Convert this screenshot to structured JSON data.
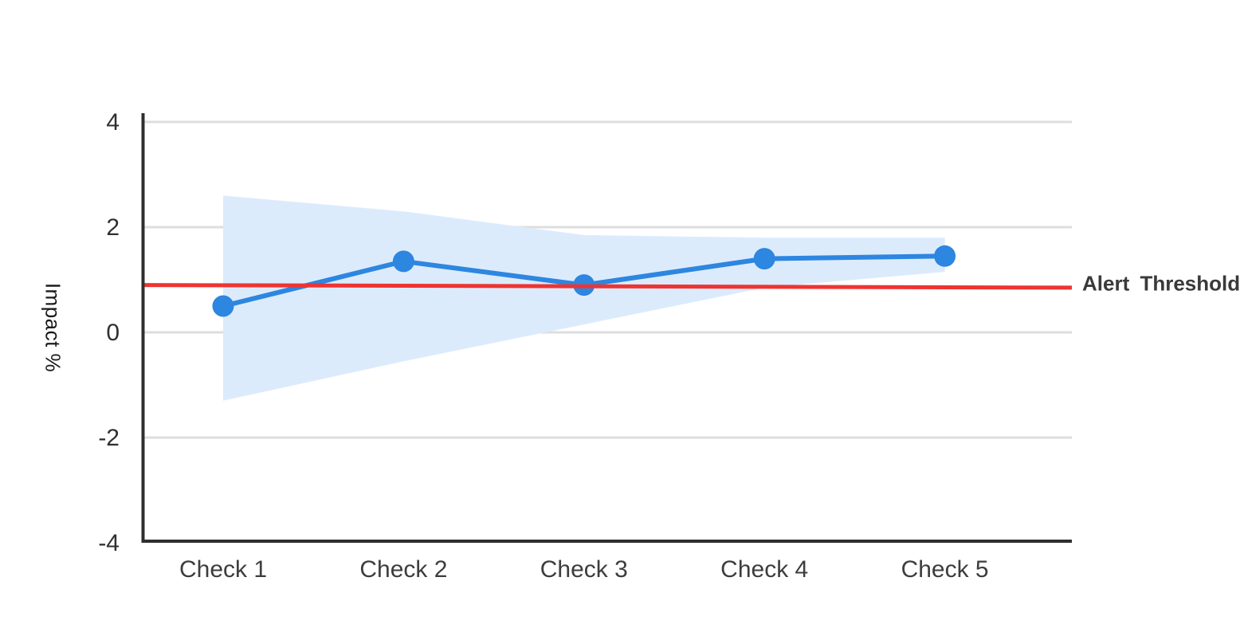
{
  "chart_data": {
    "type": "line",
    "title": "",
    "ylabel": "Impact %",
    "xlabel": "",
    "categories": [
      "Check 1",
      "Check 2",
      "Check 3",
      "Check 4",
      "Check 5"
    ],
    "series": [
      {
        "name": "Impact",
        "values": [
          0.5,
          1.35,
          0.9,
          1.4,
          1.45
        ]
      }
    ],
    "confidence_band": {
      "upper": [
        2.6,
        2.3,
        1.85,
        1.8,
        1.8
      ],
      "lower": [
        -1.3,
        -0.55,
        0.15,
        0.85,
        1.15
      ]
    },
    "threshold": {
      "label": "Alert Threshold",
      "start_value": 0.9,
      "end_value": 0.85
    },
    "yticks": [
      4,
      2,
      0,
      -2,
      -4
    ],
    "ylim": [
      -4,
      4
    ],
    "grid": "horizontal",
    "legend_position": "none",
    "colors": {
      "line": "#2d86e0",
      "point": "#2d86e0",
      "band": "#dcebfc",
      "threshold": "#ee3432",
      "axis": "#2e2e2e",
      "grid": "#dedede",
      "tick_text": "#2f2f2f",
      "category_text": "#3d3d3d",
      "ylabel_text": "#1b1b1b",
      "threshold_text": "#3a3a3a"
    }
  }
}
